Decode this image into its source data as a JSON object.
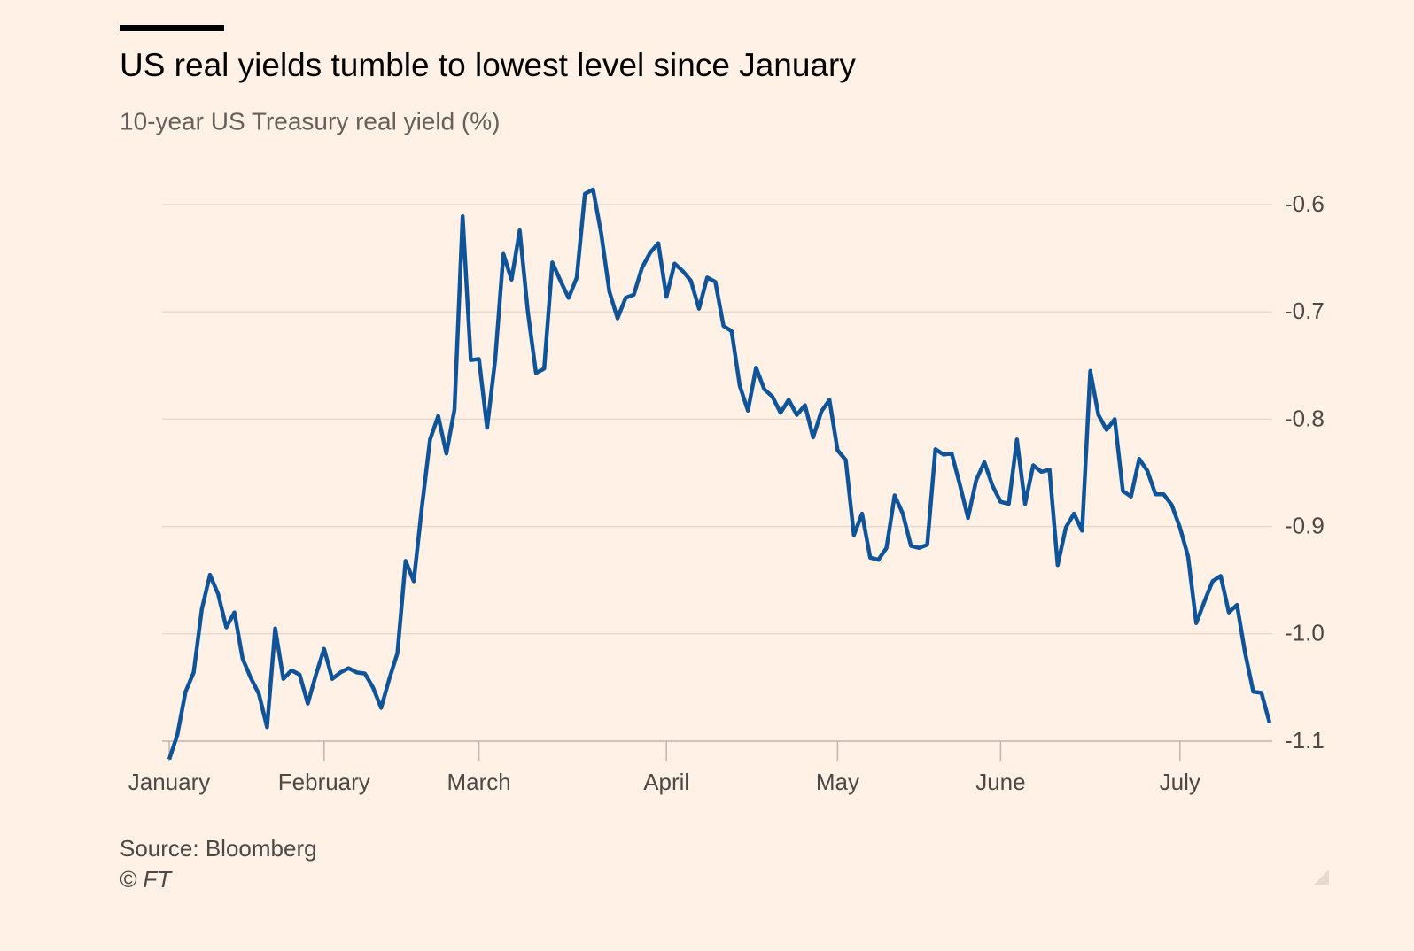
{
  "chart_data": {
    "type": "line",
    "title": "US real yields tumble to lowest level since January",
    "subtitle": "10-year US Treasury real yield (%)",
    "source": "Source: Bloomberg",
    "copyright": "© FT",
    "x": [
      0,
      1,
      2,
      3,
      4,
      5,
      6,
      7,
      8,
      9,
      10,
      11,
      12,
      13,
      14,
      15,
      16,
      17,
      18,
      19,
      20,
      21,
      22,
      23,
      24,
      25,
      26,
      27,
      28,
      29,
      30,
      31,
      32,
      33,
      34,
      35,
      36,
      37,
      38,
      39,
      40,
      41,
      42,
      43,
      44,
      45,
      46,
      47,
      48,
      49,
      50,
      51,
      52,
      53,
      54,
      55,
      56,
      57,
      58,
      59,
      60,
      61,
      62,
      63,
      64,
      65,
      66,
      67,
      68,
      69,
      70,
      71,
      72,
      73,
      74,
      75,
      76,
      77,
      78,
      79,
      80,
      81,
      82,
      83,
      84,
      85,
      86,
      87,
      88,
      89,
      90,
      91,
      92,
      93,
      94,
      95,
      96,
      97,
      98,
      99,
      100,
      101,
      102,
      103,
      104,
      105,
      106,
      107,
      108,
      109,
      110,
      111,
      112,
      113,
      114,
      115,
      116,
      117,
      118,
      119,
      120,
      121,
      122,
      123,
      124,
      125,
      126,
      127,
      128,
      129,
      130,
      131,
      132,
      133,
      134,
      135
    ],
    "series": [
      {
        "name": "10-year US Treasury real yield",
        "color": "#0f5499",
        "values": [
          -1.117,
          -1.094,
          -1.054,
          -1.036,
          -0.977,
          -0.945,
          -0.963,
          -0.994,
          -0.98,
          -1.023,
          -1.041,
          -1.056,
          -1.087,
          -0.995,
          -1.042,
          -1.034,
          -1.038,
          -1.065,
          -1.038,
          -1.014,
          -1.042,
          -1.036,
          -1.032,
          -1.036,
          -1.037,
          -1.05,
          -1.069,
          -1.042,
          -1.018,
          -0.932,
          -0.951,
          -0.882,
          -0.819,
          -0.797,
          -0.832,
          -0.791,
          -0.611,
          -0.745,
          -0.744,
          -0.808,
          -0.744,
          -0.646,
          -0.67,
          -0.624,
          -0.7,
          -0.757,
          -0.753,
          -0.654,
          -0.671,
          -0.687,
          -0.668,
          -0.59,
          -0.586,
          -0.627,
          -0.681,
          -0.706,
          -0.687,
          -0.684,
          -0.659,
          -0.645,
          -0.636,
          -0.686,
          -0.655,
          -0.662,
          -0.671,
          -0.697,
          -0.668,
          -0.672,
          -0.713,
          -0.718,
          -0.769,
          -0.792,
          -0.752,
          -0.772,
          -0.779,
          -0.794,
          -0.782,
          -0.796,
          -0.787,
          -0.817,
          -0.793,
          -0.782,
          -0.829,
          -0.838,
          -0.908,
          -0.888,
          -0.929,
          -0.931,
          -0.92,
          -0.871,
          -0.888,
          -0.918,
          -0.92,
          -0.917,
          -0.828,
          -0.833,
          -0.832,
          -0.861,
          -0.892,
          -0.857,
          -0.84,
          -0.862,
          -0.877,
          -0.879,
          -0.819,
          -0.879,
          -0.843,
          -0.849,
          -0.847,
          -0.936,
          -0.901,
          -0.888,
          -0.904,
          -0.755,
          -0.796,
          -0.81,
          -0.8,
          -0.867,
          -0.872,
          -0.837,
          -0.848,
          -0.87,
          -0.87,
          -0.88,
          -0.901,
          -0.928,
          -0.99,
          -0.97,
          -0.951,
          -0.946,
          -0.98,
          -0.973,
          -1.018,
          -1.054,
          -1.055,
          -1.083
        ]
      }
    ],
    "xlim": [
      0,
      135
    ],
    "xticks": [
      {
        "value": 0,
        "label": "January"
      },
      {
        "value": 19,
        "label": "February"
      },
      {
        "value": 38,
        "label": "March"
      },
      {
        "value": 61,
        "label": "April"
      },
      {
        "value": 82,
        "label": "May"
      },
      {
        "value": 102,
        "label": "June"
      },
      {
        "value": 124,
        "label": "July"
      }
    ],
    "ylim": [
      -1.1,
      -0.6
    ],
    "yticks": [
      -0.6,
      -0.7,
      -0.8,
      -0.9,
      {
        "value": -1,
        "label": "-1.0"
      },
      -1.1
    ],
    "grid": true
  }
}
